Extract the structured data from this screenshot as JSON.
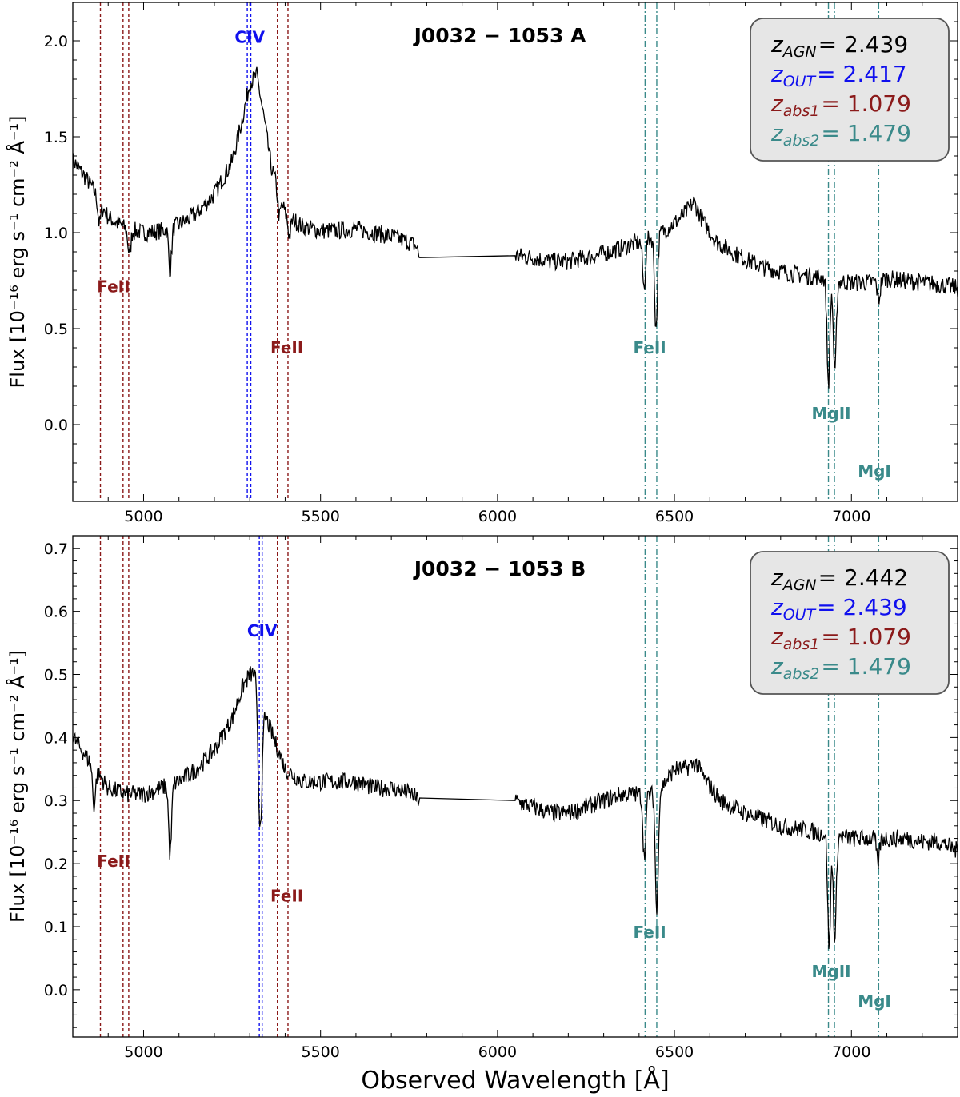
{
  "chart_data": [
    {
      "type": "line",
      "title": "J0032 − 1053 A",
      "xlabel": "",
      "ylabel": "Flux [10⁻¹⁶ erg s⁻¹ cm⁻² Å⁻¹]",
      "xlim": [
        4800,
        7300
      ],
      "ylim": [
        -0.4,
        2.2
      ],
      "x_ticks": [
        5000,
        5500,
        6000,
        6500,
        7000
      ],
      "y_ticks": [
        0.0,
        0.5,
        1.0,
        1.5,
        2.0
      ],
      "y_tick_labels": [
        "0.0",
        "0.5",
        "1.0",
        "1.5",
        "2.0"
      ],
      "grid": false,
      "series": [
        {
          "color": "#000000",
          "x": [
            4800,
            4850,
            4900,
            4950,
            5000,
            5050,
            5100,
            5150,
            5200,
            5250,
            5280,
            5300,
            5320,
            5340,
            5360,
            5400,
            5450,
            5500,
            5550,
            5600,
            5650,
            5700,
            5750,
            5770,
            5780,
            6050,
            6100,
            6150,
            6200,
            6250,
            6300,
            6350,
            6400,
            6450,
            6500,
            6530,
            6555,
            6580,
            6620,
            6680,
            6750,
            6800,
            6850,
            6900,
            6950,
            7000,
            7050,
            7100,
            7150,
            7200,
            7250,
            7300
          ],
          "y": [
            1.38,
            1.25,
            1.08,
            1.02,
            1.0,
            1.01,
            1.04,
            1.1,
            1.2,
            1.37,
            1.6,
            1.78,
            1.82,
            1.6,
            1.35,
            1.1,
            1.03,
            1.01,
            1.01,
            1.02,
            1.0,
            0.98,
            0.95,
            0.93,
            0.87,
            0.88,
            0.87,
            0.85,
            0.85,
            0.87,
            0.89,
            0.92,
            0.95,
            0.98,
            1.05,
            1.1,
            1.16,
            1.06,
            0.95,
            0.88,
            0.82,
            0.8,
            0.78,
            0.77,
            0.75,
            0.74,
            0.74,
            0.76,
            0.75,
            0.74,
            0.73,
            0.71
          ]
        }
      ],
      "absorption_dips": [
        {
          "x": 4875,
          "depth": 0.12
        },
        {
          "x": 4960,
          "depth": 0.13
        },
        {
          "x": 5075,
          "depth": 0.22
        },
        {
          "x": 5383,
          "depth": 0.12
        },
        {
          "x": 5412,
          "depth": 0.1
        },
        {
          "x": 6414,
          "depth": 0.25
        },
        {
          "x": 6448,
          "depth": 0.48
        },
        {
          "x": 6935,
          "depth": 0.54
        },
        {
          "x": 6953,
          "depth": 0.5
        },
        {
          "x": 7077,
          "depth": 0.1
        }
      ],
      "reference_lines": [
        {
          "x": 4878,
          "color": "#8b1a1a",
          "style": "dashed"
        },
        {
          "x": 4942,
          "color": "#8b1a1a",
          "style": "dashed"
        },
        {
          "x": 4958,
          "color": "#8b1a1a",
          "style": "dashed"
        },
        {
          "x": 5378,
          "color": "#8b1a1a",
          "style": "dashed"
        },
        {
          "x": 5408,
          "color": "#8b1a1a",
          "style": "dashed"
        },
        {
          "x": 5293,
          "color": "#1010ee",
          "style": "dashed"
        },
        {
          "x": 5303,
          "color": "#1010ee",
          "style": "dashed"
        },
        {
          "x": 6417,
          "color": "#3a8a8a",
          "style": "dashdot"
        },
        {
          "x": 6450,
          "color": "#3a8a8a",
          "style": "dashdot"
        },
        {
          "x": 6935,
          "color": "#3a8a8a",
          "style": "dashdot"
        },
        {
          "x": 6952,
          "color": "#3a8a8a",
          "style": "dashdot"
        },
        {
          "x": 7077,
          "color": "#3a8a8a",
          "style": "dashdot"
        }
      ],
      "line_labels": [
        {
          "text": "FeII",
          "x": 4915,
          "y": 0.69,
          "color": "#8b1a1a"
        },
        {
          "text": "CIV",
          "x": 5300,
          "y": 1.99,
          "color": "#1010ee"
        },
        {
          "text": "FeII",
          "x": 5405,
          "y": 0.37,
          "color": "#8b1a1a"
        },
        {
          "text": "FeII",
          "x": 6430,
          "y": 0.37,
          "color": "#3a8a8a"
        },
        {
          "text": "MgII",
          "x": 6943,
          "y": 0.03,
          "color": "#3a8a8a"
        },
        {
          "text": "MgI",
          "x": 7065,
          "y": -0.27,
          "color": "#3a8a8a"
        }
      ],
      "legend_box": {
        "placement": "top-right",
        "entries": [
          {
            "label": "zAGN",
            "sym": "z",
            "sub": "AGN",
            "value": "= 2.439",
            "color": "#000000"
          },
          {
            "label": "zOUT",
            "sym": "z",
            "sub": "OUT",
            "value": "= 2.417",
            "color": "#1010ee"
          },
          {
            "label": "zabs1",
            "sym": "z",
            "sub": "abs1",
            "value": "= 1.079",
            "color": "#8b1a1a"
          },
          {
            "label": "zabs2",
            "sym": "z",
            "sub": "abs2",
            "value": "= 1.479",
            "color": "#3a8a8a"
          }
        ]
      }
    },
    {
      "type": "line",
      "title": "J0032 − 1053 B",
      "xlabel": "Observed Wavelength [Å]",
      "ylabel": "Flux [10⁻¹⁶ erg s⁻¹ cm⁻² Å⁻¹]",
      "xlim": [
        4800,
        7300
      ],
      "ylim": [
        -0.075,
        0.72
      ],
      "x_ticks": [
        5000,
        5500,
        6000,
        6500,
        7000
      ],
      "y_ticks": [
        0.0,
        0.1,
        0.2,
        0.3,
        0.4,
        0.5,
        0.6,
        0.7
      ],
      "y_tick_labels": [
        "0.0",
        "0.1",
        "0.2",
        "0.3",
        "0.4",
        "0.5",
        "0.6",
        "0.7"
      ],
      "grid": false,
      "series": [
        {
          "color": "#000000",
          "x": [
            4800,
            4850,
            4900,
            4950,
            5000,
            5050,
            5100,
            5150,
            5200,
            5250,
            5280,
            5300,
            5315,
            5325,
            5340,
            5360,
            5400,
            5450,
            5500,
            5550,
            5600,
            5650,
            5700,
            5760,
            5775,
            5780,
            6050,
            6100,
            6150,
            6200,
            6250,
            6300,
            6350,
            6400,
            6450,
            6500,
            6530,
            6560,
            6590,
            6630,
            6700,
            6750,
            6800,
            6850,
            6900,
            6950,
            7000,
            7050,
            7100,
            7150,
            7200,
            7250,
            7300
          ],
          "y": [
            0.4,
            0.36,
            0.32,
            0.31,
            0.31,
            0.32,
            0.33,
            0.35,
            0.38,
            0.43,
            0.48,
            0.5,
            0.5,
            0.43,
            0.44,
            0.41,
            0.35,
            0.33,
            0.33,
            0.33,
            0.33,
            0.32,
            0.32,
            0.31,
            0.3,
            0.305,
            0.3,
            0.29,
            0.28,
            0.28,
            0.29,
            0.3,
            0.31,
            0.31,
            0.31,
            0.35,
            0.35,
            0.36,
            0.33,
            0.3,
            0.28,
            0.27,
            0.26,
            0.255,
            0.25,
            0.245,
            0.24,
            0.24,
            0.24,
            0.24,
            0.235,
            0.235,
            0.22
          ]
        }
      ],
      "absorption_dips": [
        {
          "x": 4860,
          "depth": 0.06
        },
        {
          "x": 5075,
          "depth": 0.11
        },
        {
          "x": 5327,
          "depth": 0.12
        },
        {
          "x": 5333,
          "depth": 0.1
        },
        {
          "x": 6415,
          "depth": 0.1
        },
        {
          "x": 6450,
          "depth": 0.19
        },
        {
          "x": 6937,
          "depth": 0.18
        },
        {
          "x": 6953,
          "depth": 0.17
        },
        {
          "x": 7075,
          "depth": 0.04
        }
      ],
      "reference_lines": [
        {
          "x": 4878,
          "color": "#8b1a1a",
          "style": "dashed"
        },
        {
          "x": 4942,
          "color": "#8b1a1a",
          "style": "dashed"
        },
        {
          "x": 4958,
          "color": "#8b1a1a",
          "style": "dashed"
        },
        {
          "x": 5378,
          "color": "#8b1a1a",
          "style": "dashed"
        },
        {
          "x": 5408,
          "color": "#8b1a1a",
          "style": "dashed"
        },
        {
          "x": 5327,
          "color": "#1010ee",
          "style": "dashed"
        },
        {
          "x": 5335,
          "color": "#1010ee",
          "style": "dashed"
        },
        {
          "x": 6417,
          "color": "#3a8a8a",
          "style": "dashdot"
        },
        {
          "x": 6450,
          "color": "#3a8a8a",
          "style": "dashdot"
        },
        {
          "x": 6935,
          "color": "#3a8a8a",
          "style": "dashdot"
        },
        {
          "x": 6952,
          "color": "#3a8a8a",
          "style": "dashdot"
        },
        {
          "x": 7077,
          "color": "#3a8a8a",
          "style": "dashdot"
        }
      ],
      "line_labels": [
        {
          "text": "FeII",
          "x": 4915,
          "y": 0.195,
          "color": "#8b1a1a"
        },
        {
          "text": "CIV",
          "x": 5335,
          "y": 0.56,
          "color": "#1010ee"
        },
        {
          "text": "FeII",
          "x": 5405,
          "y": 0.14,
          "color": "#8b1a1a"
        },
        {
          "text": "FeII",
          "x": 6430,
          "y": 0.082,
          "color": "#3a8a8a"
        },
        {
          "text": "MgII",
          "x": 6943,
          "y": 0.02,
          "color": "#3a8a8a"
        },
        {
          "text": "MgI",
          "x": 7065,
          "y": -0.027,
          "color": "#3a8a8a"
        }
      ],
      "legend_box": {
        "placement": "top-right",
        "entries": [
          {
            "label": "zAGN",
            "sym": "z",
            "sub": "AGN",
            "value": "= 2.442",
            "color": "#000000"
          },
          {
            "label": "zOUT",
            "sym": "z",
            "sub": "OUT",
            "value": "= 2.439",
            "color": "#1010ee"
          },
          {
            "label": "zabs1",
            "sym": "z",
            "sub": "abs1",
            "value": "= 1.079",
            "color": "#8b1a1a"
          },
          {
            "label": "zabs2",
            "sym": "z",
            "sub": "abs2",
            "value": "= 1.479",
            "color": "#3a8a8a"
          }
        ]
      }
    }
  ]
}
